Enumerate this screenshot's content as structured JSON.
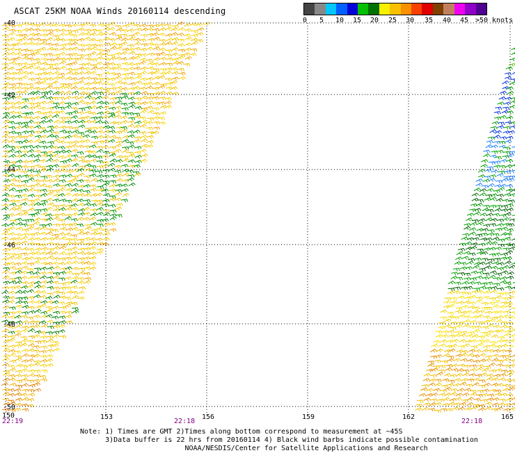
{
  "title": "ASCAT 25KM NOAA Winds 20160114 descending",
  "legend": {
    "colors": [
      "#444444",
      "#888888",
      "#00c8ff",
      "#0060ff",
      "#0000d8",
      "#00c000",
      "#007000",
      "#f8f000",
      "#f8c000",
      "#f89000",
      "#f84000",
      "#e00000",
      "#804000",
      "#c08060",
      "#f000f0",
      "#9000c8",
      "#500090"
    ],
    "labels": [
      "0",
      "5",
      "10",
      "15",
      "20",
      "25",
      "30",
      "35",
      "40",
      "45",
      ">50 knots"
    ]
  },
  "map": {
    "lat_labels": [
      "-40",
      "-42",
      "-44",
      "-46",
      "-48",
      "-50"
    ],
    "lon_labels": [
      "150",
      "153",
      "156",
      "159",
      "162",
      "165"
    ],
    "time_labels": [
      "22:19",
      "22:18",
      "22:18"
    ],
    "time_color": "#800080"
  },
  "notes": {
    "line1": "Note: 1) Times are GMT 2)Times along bottom correspond to measurement at ~45S",
    "line2": "      3)Data buffer is 22 hrs from 20160114 4) Black wind barbs indicate possible contamination",
    "line3": "                         NOAA/NESDIS/Center for Satellite Applications and Research"
  }
}
